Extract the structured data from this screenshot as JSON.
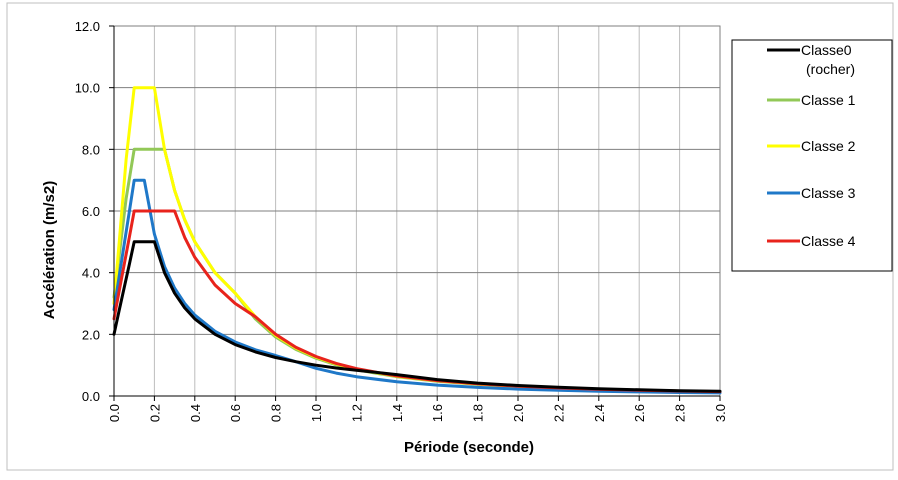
{
  "chart_data": {
    "type": "line",
    "title": "",
    "xlabel": "Période (seconde)",
    "ylabel": "Accélération (m/s2)",
    "xlim": [
      0,
      3.0
    ],
    "ylim": [
      0,
      12.0
    ],
    "xticks": [
      "0.0",
      "0.2",
      "0.4",
      "0.6",
      "0.8",
      "1.0",
      "1.2",
      "1.4",
      "1.6",
      "1.8",
      "2.0",
      "2.2",
      "2.4",
      "2.6",
      "2.8",
      "3.0"
    ],
    "yticks": [
      "0.0",
      "2.0",
      "4.0",
      "6.0",
      "8.0",
      "10.0",
      "12.0"
    ],
    "grid": true,
    "legend_position": "right",
    "series": [
      {
        "name": "Classe0\n(rocher)",
        "color": "#000000",
        "points": [
          [
            0,
            2.0
          ],
          [
            0.025,
            2.75
          ],
          [
            0.05,
            3.5
          ],
          [
            0.075,
            4.25
          ],
          [
            0.1,
            5.0
          ],
          [
            0.15,
            5.0
          ],
          [
            0.2,
            5.0
          ],
          [
            0.25,
            4.0
          ],
          [
            0.3,
            3.333
          ],
          [
            0.35,
            2.857
          ],
          [
            0.4,
            2.5
          ],
          [
            0.5,
            2.0
          ],
          [
            0.6,
            1.667
          ],
          [
            0.7,
            1.429
          ],
          [
            0.8,
            1.25
          ],
          [
            0.9,
            1.111
          ],
          [
            1.0,
            1.0
          ],
          [
            1.1,
            0.909
          ],
          [
            1.2,
            0.833
          ],
          [
            1.4,
            0.694
          ],
          [
            1.6,
            0.531
          ],
          [
            1.8,
            0.42
          ],
          [
            2.0,
            0.34
          ],
          [
            2.2,
            0.281
          ],
          [
            2.4,
            0.236
          ],
          [
            2.6,
            0.201
          ],
          [
            2.8,
            0.173
          ],
          [
            3.0,
            0.151
          ]
        ]
      },
      {
        "name": "Classe 1",
        "color": "#92c857",
        "points": [
          [
            0,
            3.2
          ],
          [
            0.03,
            4.8
          ],
          [
            0.06,
            6.4
          ],
          [
            0.1,
            8.0
          ],
          [
            0.15,
            8.0
          ],
          [
            0.2,
            8.0
          ],
          [
            0.25,
            8.0
          ],
          [
            0.3,
            6.667
          ],
          [
            0.35,
            5.714
          ],
          [
            0.4,
            5.0
          ],
          [
            0.5,
            4.0
          ],
          [
            0.6,
            3.333
          ],
          [
            0.7,
            2.5
          ],
          [
            0.8,
            1.914
          ],
          [
            0.9,
            1.512
          ],
          [
            1.0,
            1.225
          ],
          [
            1.1,
            1.012
          ],
          [
            1.2,
            0.851
          ],
          [
            1.4,
            0.625
          ],
          [
            1.6,
            0.479
          ],
          [
            1.8,
            0.378
          ],
          [
            2.0,
            0.306
          ],
          [
            2.2,
            0.253
          ],
          [
            2.4,
            0.213
          ],
          [
            2.6,
            0.181
          ],
          [
            2.8,
            0.156
          ],
          [
            3.0,
            0.136
          ]
        ]
      },
      {
        "name": "Classe 2",
        "color": "#ffff00",
        "points": [
          [
            0,
            3.0
          ],
          [
            0.03,
            5.333
          ],
          [
            0.06,
            7.667
          ],
          [
            0.1,
            10.0
          ],
          [
            0.15,
            10.0
          ],
          [
            0.2,
            10.0
          ],
          [
            0.25,
            8.0
          ],
          [
            0.3,
            6.667
          ],
          [
            0.35,
            5.714
          ],
          [
            0.4,
            5.0
          ],
          [
            0.5,
            4.0
          ],
          [
            0.6,
            3.333
          ],
          [
            0.7,
            2.571
          ],
          [
            0.8,
            1.969
          ],
          [
            0.9,
            1.556
          ],
          [
            1.0,
            1.26
          ],
          [
            1.1,
            1.041
          ],
          [
            1.2,
            0.875
          ],
          [
            1.4,
            0.643
          ],
          [
            1.6,
            0.492
          ],
          [
            1.8,
            0.389
          ],
          [
            2.0,
            0.315
          ],
          [
            2.2,
            0.26
          ],
          [
            2.4,
            0.219
          ],
          [
            2.6,
            0.186
          ],
          [
            2.8,
            0.161
          ],
          [
            3.0,
            0.14
          ]
        ]
      },
      {
        "name": "Classe 3",
        "color": "#1f78c8",
        "points": [
          [
            0,
            2.8
          ],
          [
            0.025,
            3.85
          ],
          [
            0.05,
            4.9
          ],
          [
            0.075,
            5.95
          ],
          [
            0.1,
            7.0
          ],
          [
            0.15,
            7.0
          ],
          [
            0.2,
            5.25
          ],
          [
            0.25,
            4.2
          ],
          [
            0.3,
            3.5
          ],
          [
            0.35,
            3.0
          ],
          [
            0.4,
            2.625
          ],
          [
            0.5,
            2.1
          ],
          [
            0.6,
            1.75
          ],
          [
            0.7,
            1.5
          ],
          [
            0.8,
            1.313
          ],
          [
            0.9,
            1.111
          ],
          [
            1.0,
            0.9
          ],
          [
            1.1,
            0.744
          ],
          [
            1.2,
            0.625
          ],
          [
            1.4,
            0.459
          ],
          [
            1.6,
            0.352
          ],
          [
            1.8,
            0.278
          ],
          [
            2.0,
            0.225
          ],
          [
            2.2,
            0.186
          ],
          [
            2.4,
            0.156
          ],
          [
            2.6,
            0.133
          ],
          [
            2.8,
            0.115
          ],
          [
            3.0,
            0.1
          ]
        ]
      },
      {
        "name": "Classe 4",
        "color": "#e8231c",
        "points": [
          [
            0,
            2.5
          ],
          [
            0.025,
            3.375
          ],
          [
            0.05,
            4.25
          ],
          [
            0.075,
            5.125
          ],
          [
            0.1,
            6.0
          ],
          [
            0.2,
            6.0
          ],
          [
            0.3,
            6.0
          ],
          [
            0.35,
            5.143
          ],
          [
            0.4,
            4.5
          ],
          [
            0.5,
            3.6
          ],
          [
            0.6,
            3.0
          ],
          [
            0.7,
            2.571
          ],
          [
            0.8,
            2.0
          ],
          [
            0.9,
            1.58
          ],
          [
            1.0,
            1.28
          ],
          [
            1.1,
            1.058
          ],
          [
            1.2,
            0.889
          ],
          [
            1.4,
            0.653
          ],
          [
            1.6,
            0.5
          ],
          [
            1.8,
            0.395
          ],
          [
            2.0,
            0.32
          ],
          [
            2.2,
            0.264
          ],
          [
            2.4,
            0.222
          ],
          [
            2.6,
            0.189
          ],
          [
            2.8,
            0.163
          ],
          [
            3.0,
            0.142
          ]
        ]
      }
    ]
  }
}
